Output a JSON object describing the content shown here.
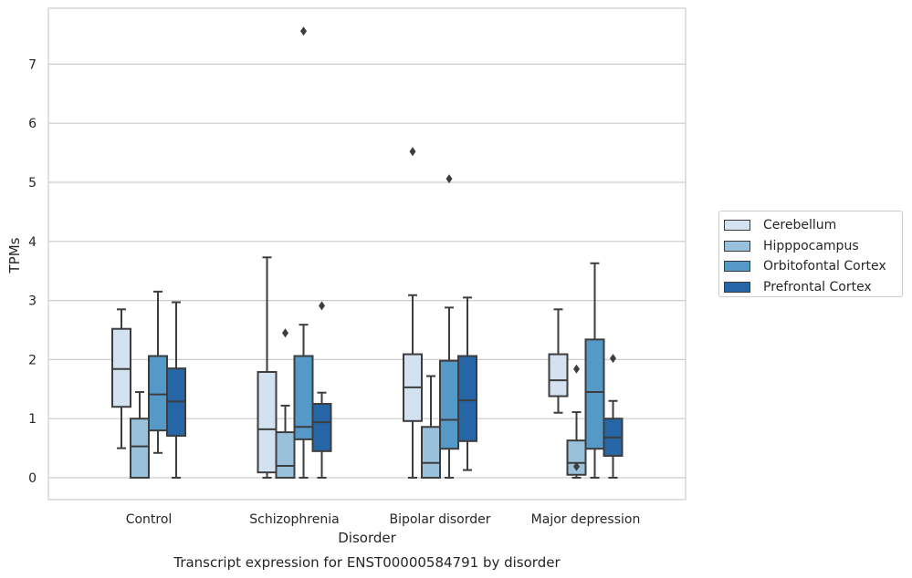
{
  "chart_data": {
    "type": "box",
    "title": "Transcript expression for ENST00000584791 by disorder",
    "xlabel": "Disorder",
    "ylabel": "TPMs",
    "ylim": [
      -0.37,
      7.95
    ],
    "yticks": [
      0,
      1,
      2,
      3,
      4,
      5,
      6,
      7
    ],
    "grid": "horizontal",
    "legend_position": "right",
    "categories": [
      "Control",
      "Schizophrenia",
      "Bipolar disorder",
      "Major depression"
    ],
    "series": [
      {
        "name": "Cerebellum",
        "color": "#d3e1f0",
        "boxes": [
          {
            "whislo": 0.5,
            "q1": 1.2,
            "med": 1.84,
            "q3": 2.52,
            "whishi": 2.85,
            "fliers": []
          },
          {
            "whislo": 0.0,
            "q1": 0.09,
            "med": 0.82,
            "q3": 1.79,
            "whishi": 3.73,
            "fliers": []
          },
          {
            "whislo": 0.0,
            "q1": 0.96,
            "med": 1.53,
            "q3": 2.09,
            "whishi": 3.09,
            "fliers": [
              5.52
            ]
          },
          {
            "whislo": 1.1,
            "q1": 1.38,
            "med": 1.65,
            "q3": 2.09,
            "whishi": 2.85,
            "fliers": []
          }
        ]
      },
      {
        "name": "Hipppocampus",
        "color": "#9ac1dc",
        "boxes": [
          {
            "whislo": 0.0,
            "q1": 0.0,
            "med": 0.53,
            "q3": 1.0,
            "whishi": 1.45,
            "fliers": []
          },
          {
            "whislo": 0.0,
            "q1": 0.0,
            "med": 0.2,
            "q3": 0.77,
            "whishi": 1.22,
            "fliers": [
              2.45
            ]
          },
          {
            "whislo": 0.0,
            "q1": 0.0,
            "med": 0.25,
            "q3": 0.86,
            "whishi": 1.72,
            "fliers": []
          },
          {
            "whislo": 0.0,
            "q1": 0.05,
            "med": 0.25,
            "q3": 0.63,
            "whishi": 1.11,
            "fliers": [
              0.19,
              1.84
            ]
          }
        ]
      },
      {
        "name": "Orbitofontal Cortex",
        "color": "#5599c8",
        "boxes": [
          {
            "whislo": 0.42,
            "q1": 0.8,
            "med": 1.41,
            "q3": 2.06,
            "whishi": 3.15,
            "fliers": []
          },
          {
            "whislo": 0.0,
            "q1": 0.65,
            "med": 0.86,
            "q3": 2.06,
            "whishi": 2.59,
            "fliers": [
              7.56
            ]
          },
          {
            "whislo": 0.0,
            "q1": 0.49,
            "med": 0.98,
            "q3": 1.98,
            "whishi": 2.88,
            "fliers": [
              5.06
            ]
          },
          {
            "whislo": 0.0,
            "q1": 0.49,
            "med": 1.45,
            "q3": 2.34,
            "whishi": 3.63,
            "fliers": []
          }
        ]
      },
      {
        "name": "Prefrontal Cortex",
        "color": "#2666a6",
        "boxes": [
          {
            "whislo": 0.0,
            "q1": 0.71,
            "med": 1.29,
            "q3": 1.85,
            "whishi": 2.97,
            "fliers": []
          },
          {
            "whislo": 0.0,
            "q1": 0.45,
            "med": 0.94,
            "q3": 1.25,
            "whishi": 1.44,
            "fliers": [
              2.91
            ]
          },
          {
            "whislo": 0.13,
            "q1": 0.62,
            "med": 1.31,
            "q3": 2.06,
            "whishi": 3.05,
            "fliers": []
          },
          {
            "whislo": 0.0,
            "q1": 0.37,
            "med": 0.68,
            "q3": 1.0,
            "whishi": 1.3,
            "fliers": [
              2.02
            ]
          }
        ]
      }
    ]
  }
}
